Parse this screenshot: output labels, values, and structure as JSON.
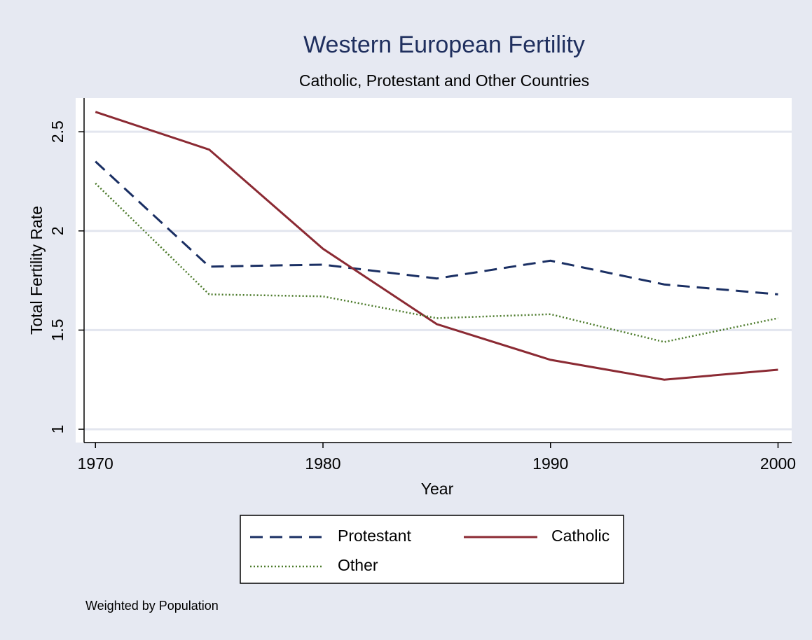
{
  "chart_data": {
    "type": "line",
    "title": "Western European Fertility",
    "subtitle": "Catholic, Protestant and Other Countries",
    "xlabel": "Year",
    "ylabel": "Total Fertility Rate",
    "note": "Weighted by Population",
    "x": [
      1970,
      1975,
      1980,
      1985,
      1990,
      1995,
      2000
    ],
    "series": [
      {
        "name": "Protestant",
        "color": "#1a2f63",
        "dash": "dashed",
        "values": [
          2.35,
          1.82,
          1.83,
          1.76,
          1.85,
          1.73,
          1.68
        ]
      },
      {
        "name": "Catholic",
        "color": "#8b2a33",
        "dash": "solid",
        "values": [
          2.6,
          2.41,
          1.91,
          1.53,
          1.35,
          1.25,
          1.3
        ]
      },
      {
        "name": "Other",
        "color": "#4b7a2a",
        "dash": "dotted",
        "values": [
          2.24,
          1.68,
          1.67,
          1.56,
          1.58,
          1.44,
          1.56
        ]
      }
    ],
    "xlim": [
      1969.5,
      2000.6
    ],
    "ylim": [
      0.933,
      2.67
    ],
    "xticks": [
      1970,
      1980,
      1990,
      2000
    ],
    "yticks": [
      1,
      1.5,
      2,
      2.5
    ],
    "grid": true,
    "legend": "bottom"
  }
}
